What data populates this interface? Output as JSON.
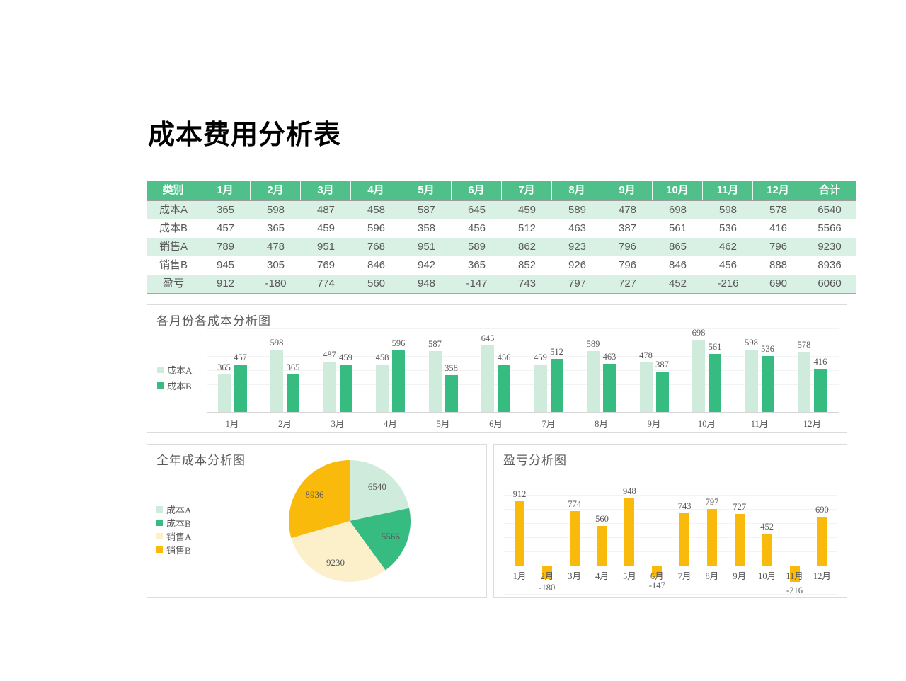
{
  "page_title": "成本费用分析表",
  "colors": {
    "header_green": "#50C08B",
    "row_light_green": "#D9F1E4",
    "cost_a_light": "#CFEBDC",
    "cost_b_green": "#36BC81",
    "sales_a_cream": "#FCF0CB",
    "sales_b_gold": "#F9BA0B",
    "text_gray": "#595959"
  },
  "table": {
    "headers": [
      "类别",
      "1月",
      "2月",
      "3月",
      "4月",
      "5月",
      "6月",
      "7月",
      "8月",
      "9月",
      "10月",
      "11月",
      "12月",
      "合计"
    ],
    "rows": [
      {
        "label": "成本A",
        "values": [
          "365",
          "598",
          "487",
          "458",
          "587",
          "645",
          "459",
          "589",
          "478",
          "698",
          "598",
          "578",
          "6540"
        ]
      },
      {
        "label": "成本B",
        "values": [
          "457",
          "365",
          "459",
          "596",
          "358",
          "456",
          "512",
          "463",
          "387",
          "561",
          "536",
          "416",
          "5566"
        ]
      },
      {
        "label": "销售A",
        "values": [
          "789",
          "478",
          "951",
          "768",
          "951",
          "589",
          "862",
          "923",
          "796",
          "865",
          "462",
          "796",
          "9230"
        ]
      },
      {
        "label": "销售B",
        "values": [
          "945",
          "305",
          "769",
          "846",
          "942",
          "365",
          "852",
          "926",
          "796",
          "846",
          "456",
          "888",
          "8936"
        ]
      },
      {
        "label": "盈亏",
        "values": [
          "912",
          "-180",
          "774",
          "560",
          "948",
          "-147",
          "743",
          "797",
          "727",
          "452",
          "-216",
          "690",
          "6060"
        ]
      }
    ]
  },
  "chart_data": [
    {
      "type": "bar",
      "title": "各月份各成本分析图",
      "categories": [
        "1月",
        "2月",
        "3月",
        "4月",
        "5月",
        "6月",
        "7月",
        "8月",
        "9月",
        "10月",
        "11月",
        "12月"
      ],
      "series": [
        {
          "name": "成本A",
          "color": "#CFEBDC",
          "values": [
            365,
            598,
            487,
            458,
            587,
            645,
            459,
            589,
            478,
            698,
            598,
            578
          ]
        },
        {
          "name": "成本B",
          "color": "#36BC81",
          "values": [
            457,
            365,
            459,
            596,
            358,
            456,
            512,
            463,
            387,
            561,
            536,
            416
          ]
        }
      ],
      "ylim": [
        0,
        800
      ],
      "grid": true,
      "legend_position": "left",
      "data_labels": true
    },
    {
      "type": "pie",
      "title": "全年成本分析图",
      "labels": [
        "成本A",
        "成本B",
        "销售A",
        "销售B"
      ],
      "values": [
        6540,
        5566,
        9230,
        8936
      ],
      "colors": [
        "#CFEBDC",
        "#36BC81",
        "#FCF0CB",
        "#F9BA0B"
      ],
      "legend_position": "left",
      "data_labels": true
    },
    {
      "type": "bar",
      "title": "盈亏分析图",
      "categories": [
        "1月",
        "2月",
        "3月",
        "4月",
        "5月",
        "6月",
        "7月",
        "8月",
        "9月",
        "10月",
        "11月",
        "12月"
      ],
      "series": [
        {
          "name": "盈亏",
          "color": "#F9BA0B",
          "values": [
            912,
            -180,
            774,
            560,
            948,
            -147,
            743,
            797,
            727,
            452,
            -216,
            690
          ]
        }
      ],
      "ylim": [
        -400,
        1200
      ],
      "grid": true,
      "legend_position": "none",
      "data_labels": true
    }
  ]
}
